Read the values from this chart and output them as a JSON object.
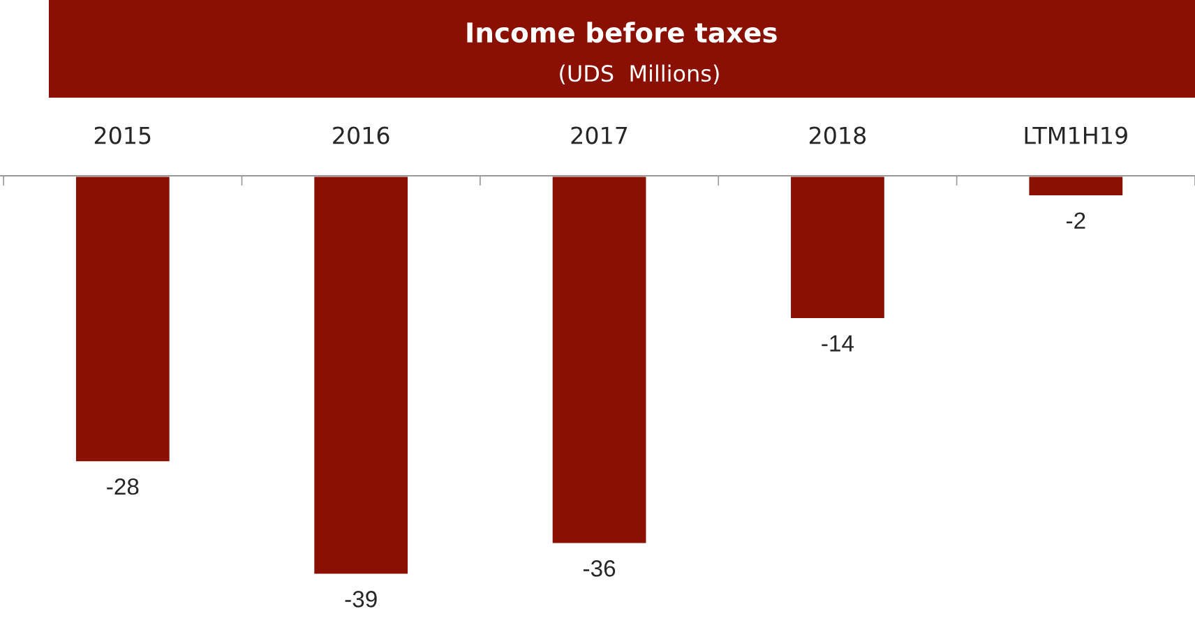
{
  "chart_data": {
    "type": "bar",
    "title": "Income before taxes",
    "subtitle": "(UDS  Millions)",
    "categories": [
      "2015",
      "2016",
      "2017",
      "2018",
      "LTM1H19"
    ],
    "values": [
      -28,
      -39,
      -36,
      -14,
      -2
    ],
    "color": "#8b1004",
    "data_labels": true,
    "tick_labels": "x",
    "grid": false,
    "legend": false
  }
}
